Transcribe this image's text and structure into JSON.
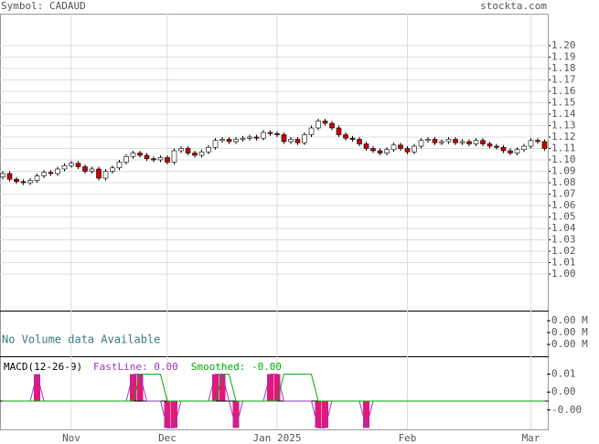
{
  "header": {
    "symbol": "Symbol: CADAUD",
    "site": "stockta.com"
  },
  "chart_data": [
    {
      "type": "candlestick",
      "categories": [
        null,
        null,
        null,
        null,
        null,
        null,
        null,
        null,
        null,
        null,
        "Nov",
        null,
        null,
        null,
        null,
        null,
        null,
        null,
        null,
        null,
        null,
        null,
        null,
        null,
        "Dec",
        null,
        null,
        null,
        null,
        null,
        null,
        null,
        null,
        null,
        null,
        null,
        null,
        null,
        null,
        null,
        "Jan 2025",
        null,
        null,
        null,
        null,
        null,
        null,
        null,
        null,
        null,
        null,
        null,
        null,
        null,
        null,
        null,
        null,
        null,
        null,
        "Feb",
        null,
        null,
        null,
        null,
        null,
        null,
        null,
        null,
        null,
        null,
        null,
        null,
        null,
        null,
        null,
        null,
        null,
        "Mar",
        null,
        null
      ],
      "open": [
        1.085,
        1.088,
        1.083,
        1.081,
        1.08,
        1.082,
        1.086,
        1.089,
        1.088,
        1.092,
        1.095,
        1.097,
        1.094,
        1.09,
        1.092,
        1.084,
        1.09,
        1.093,
        1.098,
        1.103,
        1.106,
        1.104,
        1.101,
        1.1,
        1.102,
        1.098,
        1.108,
        1.11,
        1.106,
        1.104,
        1.107,
        1.111,
        1.117,
        1.118,
        1.116,
        1.118,
        1.119,
        1.12,
        1.119,
        1.124,
        1.123,
        1.122,
        1.116,
        1.118,
        1.115,
        1.122,
        1.128,
        1.134,
        1.132,
        1.128,
        1.122,
        1.119,
        1.118,
        1.114,
        1.11,
        1.108,
        1.106,
        1.109,
        1.113,
        1.11,
        1.107,
        1.112,
        1.117,
        1.118,
        1.115,
        1.116,
        1.118,
        1.115,
        1.116,
        1.114,
        1.117,
        1.114,
        1.112,
        1.111,
        1.108,
        1.106,
        1.109,
        1.112,
        1.117,
        1.116
      ],
      "high": [
        1.09,
        1.09,
        1.085,
        1.083,
        1.084,
        1.088,
        1.091,
        1.091,
        1.094,
        1.097,
        1.099,
        1.099,
        1.096,
        1.094,
        1.094,
        1.092,
        1.095,
        1.1,
        1.105,
        1.108,
        1.108,
        1.106,
        1.103,
        1.104,
        1.104,
        1.11,
        1.112,
        1.112,
        1.108,
        1.109,
        1.113,
        1.119,
        1.12,
        1.12,
        1.12,
        1.121,
        1.122,
        1.122,
        1.126,
        1.126,
        1.125,
        1.124,
        1.12,
        1.12,
        1.124,
        1.13,
        1.136,
        1.136,
        1.134,
        1.13,
        1.124,
        1.121,
        1.12,
        1.116,
        1.112,
        1.11,
        1.111,
        1.115,
        1.115,
        1.112,
        1.114,
        1.119,
        1.12,
        1.12,
        1.118,
        1.12,
        1.12,
        1.118,
        1.118,
        1.119,
        1.119,
        1.116,
        1.114,
        1.113,
        1.11,
        1.111,
        1.114,
        1.119,
        1.119,
        1.118
      ],
      "low": [
        1.083,
        1.081,
        1.079,
        1.078,
        1.078,
        1.08,
        1.084,
        1.086,
        1.086,
        1.09,
        1.093,
        1.092,
        1.088,
        1.088,
        1.082,
        1.082,
        1.088,
        1.091,
        1.096,
        1.101,
        1.102,
        1.099,
        1.098,
        1.098,
        1.096,
        1.096,
        1.106,
        1.104,
        1.102,
        1.102,
        1.105,
        1.109,
        1.115,
        1.114,
        1.114,
        1.116,
        1.117,
        1.117,
        1.117,
        1.121,
        1.12,
        1.114,
        1.114,
        1.113,
        1.113,
        1.12,
        1.126,
        1.13,
        1.126,
        1.12,
        1.117,
        1.116,
        1.112,
        1.108,
        1.106,
        1.104,
        1.104,
        1.107,
        1.108,
        1.105,
        1.105,
        1.11,
        1.115,
        1.113,
        1.113,
        1.114,
        1.113,
        1.113,
        1.112,
        1.112,
        1.112,
        1.11,
        1.109,
        1.106,
        1.104,
        1.104,
        1.107,
        1.11,
        1.114,
        1.108
      ],
      "close": [
        1.088,
        1.083,
        1.081,
        1.08,
        1.082,
        1.086,
        1.089,
        1.088,
        1.092,
        1.095,
        1.097,
        1.094,
        1.09,
        1.092,
        1.084,
        1.09,
        1.093,
        1.098,
        1.103,
        1.106,
        1.104,
        1.101,
        1.1,
        1.102,
        1.098,
        1.108,
        1.11,
        1.106,
        1.104,
        1.107,
        1.111,
        1.117,
        1.118,
        1.116,
        1.118,
        1.119,
        1.12,
        1.119,
        1.124,
        1.123,
        1.122,
        1.116,
        1.118,
        1.115,
        1.122,
        1.128,
        1.134,
        1.132,
        1.128,
        1.122,
        1.119,
        1.118,
        1.114,
        1.11,
        1.108,
        1.106,
        1.109,
        1.113,
        1.11,
        1.107,
        1.112,
        1.117,
        1.118,
        1.115,
        1.116,
        1.118,
        1.115,
        1.116,
        1.114,
        1.117,
        1.114,
        1.112,
        1.111,
        1.108,
        1.106,
        1.109,
        1.112,
        1.117,
        1.116,
        1.11
      ],
      "up_color": "#ffffff",
      "down_color": "#cc0000",
      "ylim": [
        0.968,
        1.228
      ],
      "yticks": [
        {
          "value": 1.0,
          "label": "1.00"
        },
        1.01,
        1.02,
        1.03,
        1.04,
        1.05,
        1.06,
        1.07,
        1.08,
        1.09,
        {
          "value": 1.1,
          "label": "1.10"
        },
        1.11,
        1.12,
        1.13,
        1.14,
        1.15,
        1.16,
        1.17,
        1.18,
        1.19,
        {
          "value": 1.2,
          "label": "1.20"
        }
      ],
      "grid": true
    },
    {
      "type": "volume",
      "annotation": "No Volume data Available",
      "ylim": [
        0,
        0.00385
      ],
      "yticks": [
        {
          "value": 0.001,
          "label": "0.00 M"
        },
        {
          "value": 0.002,
          "label": "0.00 M"
        },
        {
          "value": 0.003,
          "label": "0.00 M"
        }
      ]
    },
    {
      "type": "macd",
      "label": "MACD(12-26-9)",
      "ylim": [
        -0.0095,
        0.015
      ],
      "yticks": [
        {
          "value": -0.003,
          "label": "-0.00"
        },
        {
          "value": 0.003,
          "label": "0.00"
        },
        {
          "value": 0.009,
          "label": "0.01"
        }
      ],
      "histogram": {
        "color": "#e0187a",
        "values": [
          0,
          0,
          0,
          0,
          0,
          0.009,
          0,
          0,
          0,
          0,
          0,
          0,
          0,
          0,
          0,
          0,
          0,
          0,
          0,
          0.009,
          0.009,
          0,
          0,
          0,
          -0.009,
          -0.009,
          0,
          0,
          0,
          0,
          0,
          0.009,
          0.009,
          0,
          -0.009,
          0,
          0,
          0,
          0,
          0.009,
          0.009,
          0,
          0,
          0,
          0,
          0,
          -0.009,
          -0.009,
          0,
          0,
          0,
          0,
          0,
          -0.009,
          0,
          0,
          0,
          0,
          0,
          0,
          0,
          0,
          0,
          0,
          0,
          0,
          0,
          0,
          0,
          0,
          0,
          0,
          0,
          0,
          0,
          0,
          0,
          0,
          0,
          0
        ]
      },
      "series": [
        {
          "name": "FastLine: 0.00",
          "color": "#9933cc",
          "values": [
            0,
            0,
            0,
            0,
            0,
            0.009,
            0,
            0,
            0,
            0,
            0,
            0,
            0,
            0,
            0,
            0,
            0,
            0,
            0,
            0.009,
            0.009,
            0,
            0,
            0,
            -0.009,
            -0.009,
            0,
            0,
            0,
            0,
            0,
            0.009,
            0.009,
            0,
            -0.009,
            0,
            0,
            0,
            0,
            0.009,
            0.009,
            0,
            0,
            0,
            0,
            0,
            -0.009,
            -0.009,
            0,
            0,
            0,
            0,
            0,
            -0.009,
            0,
            0,
            0,
            0,
            0,
            0,
            0,
            0,
            0,
            0,
            0,
            0,
            0,
            0,
            0,
            0,
            0,
            0,
            0,
            0,
            0,
            0,
            0,
            0,
            0,
            0
          ]
        },
        {
          "name": "Smoothed: -0.00",
          "color": "#00aa00",
          "values": [
            0,
            0,
            0,
            0,
            0,
            0,
            0,
            0,
            0,
            0,
            0,
            0,
            0,
            0,
            0,
            0,
            0,
            0,
            0,
            0,
            0.009,
            0.009,
            0.009,
            0.009,
            0,
            0,
            0,
            0,
            0,
            0,
            0,
            0,
            0.009,
            0.009,
            0,
            0,
            0,
            0,
            0,
            0,
            0,
            0.009,
            0.009,
            0.009,
            0.009,
            0.009,
            0,
            0,
            0,
            0,
            0,
            0,
            0,
            0,
            0,
            0,
            0,
            0,
            0,
            0,
            0,
            0,
            0,
            0,
            0,
            0,
            0,
            0,
            0,
            0,
            0,
            0,
            0,
            0,
            0,
            0,
            0,
            0,
            0,
            0
          ]
        }
      ]
    }
  ]
}
